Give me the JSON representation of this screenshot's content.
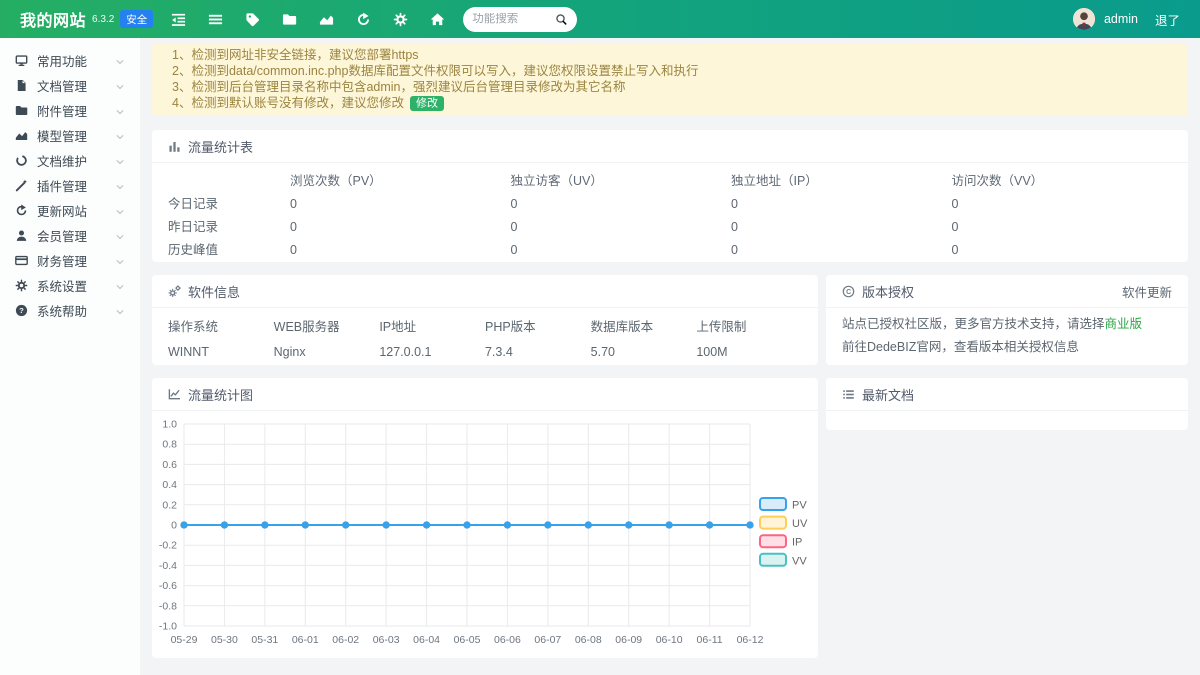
{
  "header": {
    "site_name": "我的网站",
    "version": "6.3.2",
    "badge": "安全",
    "search_placeholder": "功能搜索",
    "username": "admin",
    "logout": "退了",
    "icons": [
      "outdent-icon",
      "bars-icon",
      "tag-icon",
      "folder-icon",
      "chart-area-icon",
      "redo-icon",
      "gear-icon",
      "home-icon"
    ]
  },
  "sidebar": {
    "items": [
      {
        "id": "common-features",
        "label": "常用功能",
        "icon": "desktop-icon"
      },
      {
        "id": "document-management",
        "label": "文档管理",
        "icon": "file-icon"
      },
      {
        "id": "attachment-management",
        "label": "附件管理",
        "icon": "folder-icon"
      },
      {
        "id": "model-management",
        "label": "模型管理",
        "icon": "chart-area-icon"
      },
      {
        "id": "document-maintenance",
        "label": "文档维护",
        "icon": "circle-notch-icon"
      },
      {
        "id": "plugin-management",
        "label": "插件管理",
        "icon": "wand-icon"
      },
      {
        "id": "update-site",
        "label": "更新网站",
        "icon": "redo-icon"
      },
      {
        "id": "member-management",
        "label": "会员管理",
        "icon": "user-icon"
      },
      {
        "id": "finance-management",
        "label": "财务管理",
        "icon": "credit-card-icon"
      },
      {
        "id": "system-settings",
        "label": "系统设置",
        "icon": "gear-icon"
      },
      {
        "id": "system-help",
        "label": "系统帮助",
        "icon": "question-icon"
      }
    ]
  },
  "notices": {
    "items": [
      {
        "text": "1、检测到网址非安全链接，建议您部署https",
        "has_action": false
      },
      {
        "text": "2、检测到data/common.inc.php数据库配置文件权限可以写入，建议您权限设置禁止写入和执行",
        "has_action": false
      },
      {
        "text": "3、检测到后台管理目录名称中包含admin，强烈建议后台管理目录修改为其它名称",
        "has_action": false
      },
      {
        "text": "4、检测到默认账号没有修改，建议您修改",
        "has_action": true
      }
    ],
    "action_label": "修改"
  },
  "traffic_table": {
    "title": "流量统计表",
    "icon": "chart-bar-icon",
    "columns": [
      "浏览次数（PV）",
      "独立访客（UV）",
      "独立地址（IP）",
      "访问次数（VV）"
    ],
    "rows": [
      {
        "label": "今日记录",
        "values": [
          0,
          0,
          0,
          0
        ]
      },
      {
        "label": "昨日记录",
        "values": [
          0,
          0,
          0,
          0
        ]
      },
      {
        "label": "历史峰值",
        "values": [
          0,
          0,
          0,
          0
        ]
      }
    ]
  },
  "software_info": {
    "title": "软件信息",
    "icon": "cogs-icon",
    "fields": [
      {
        "label": "操作系统",
        "value": "WINNT"
      },
      {
        "label": "WEB服务器",
        "value": "Nginx"
      },
      {
        "label": "IP地址",
        "value": "127.0.0.1"
      },
      {
        "label": "PHP版本",
        "value": "7.3.4"
      },
      {
        "label": "数据库版本",
        "value": "5.70"
      },
      {
        "label": "上传限制",
        "value": "100M"
      }
    ]
  },
  "license": {
    "title": "版本授权",
    "icon": "copyright-icon",
    "update_link": "软件更新",
    "line1_prefix": "站点已授权社区版，更多官方技术支持，请选择",
    "line1_link": "商业版",
    "line2": "前往DedeBIZ官网，查看版本相关授权信息"
  },
  "latest_docs": {
    "title": "最新文档",
    "icon": "list-icon"
  },
  "chart_data": {
    "type": "line",
    "title": "流量统计图",
    "icon": "chart-line-icon",
    "x": [
      "05-29",
      "05-30",
      "05-31",
      "06-01",
      "06-02",
      "06-03",
      "06-04",
      "06-05",
      "06-06",
      "06-07",
      "06-08",
      "06-09",
      "06-10",
      "06-11",
      "06-12"
    ],
    "series": [
      {
        "name": "PV",
        "color": "#36a2eb",
        "fill": "#d8ecfa",
        "values": [
          0,
          0,
          0,
          0,
          0,
          0,
          0,
          0,
          0,
          0,
          0,
          0,
          0,
          0,
          0
        ]
      },
      {
        "name": "UV",
        "color": "#ffce56",
        "fill": "#fff4d8",
        "values": [
          0,
          0,
          0,
          0,
          0,
          0,
          0,
          0,
          0,
          0,
          0,
          0,
          0,
          0,
          0
        ]
      },
      {
        "name": "IP",
        "color": "#ff6384",
        "fill": "#ffdfe6",
        "values": [
          0,
          0,
          0,
          0,
          0,
          0,
          0,
          0,
          0,
          0,
          0,
          0,
          0,
          0,
          0
        ]
      },
      {
        "name": "VV",
        "color": "#4bc0c0",
        "fill": "#daf2f1",
        "values": [
          0,
          0,
          0,
          0,
          0,
          0,
          0,
          0,
          0,
          0,
          0,
          0,
          0,
          0,
          0
        ]
      }
    ],
    "ylim": [
      -1,
      1
    ],
    "yticks": [
      1.0,
      0.8,
      0.6,
      0.4,
      0.2,
      0,
      -0.2,
      -0.4,
      -0.6,
      -0.8,
      -1.0
    ],
    "grid": true,
    "legend_position": "right"
  }
}
